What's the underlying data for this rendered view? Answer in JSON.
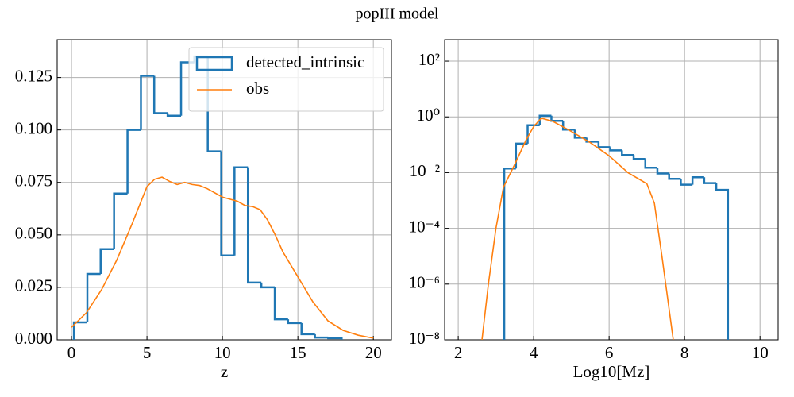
{
  "title": "popIII model",
  "chart_data": [
    {
      "type": "histogram",
      "xlabel": "z",
      "xlim": [
        -0.95,
        21.2
      ],
      "ylim": [
        0,
        0.143
      ],
      "xticks": [
        0,
        5,
        10,
        15,
        20
      ],
      "yticks": [
        {
          "value": 0,
          "label": "0.000"
        },
        {
          "value": 0.025,
          "label": "0.025"
        },
        {
          "value": 0.05,
          "label": "0.050"
        },
        {
          "value": 0.075,
          "label": "0.075"
        },
        {
          "value": 0.1,
          "label": "0.100"
        },
        {
          "value": 0.125,
          "label": "0.125"
        }
      ],
      "grid": true,
      "legend": "upper right",
      "series": [
        {
          "name": "detected_intrinsic",
          "color": "#1f77b4",
          "style": "step",
          "bins": [
            0.16,
            1.05,
            1.93,
            2.82,
            3.71,
            4.6,
            5.48,
            6.37,
            7.26,
            8.14,
            9.03,
            9.92,
            10.8,
            11.69,
            12.58,
            13.47,
            14.35,
            15.24,
            16.13,
            17.01,
            17.9
          ],
          "values": [
            0.0083,
            0.0314,
            0.0432,
            0.0697,
            0.1,
            0.1258,
            0.108,
            0.1068,
            0.1322,
            0.135,
            0.0898,
            0.0402,
            0.0822,
            0.0273,
            0.025,
            0.0098,
            0.008,
            0.0027,
            0.0011,
            0.0008
          ]
        },
        {
          "name": "obs",
          "color": "#ff7f0e",
          "style": "line",
          "x": [
            0,
            1,
            2,
            3,
            4,
            5,
            5.5,
            6,
            6.5,
            7,
            7.5,
            8,
            8.5,
            9,
            9.5,
            10,
            10.5,
            11,
            11.5,
            12,
            12.5,
            13,
            13.5,
            14,
            15,
            16,
            17,
            18,
            19,
            20
          ],
          "values": [
            0.006,
            0.013,
            0.024,
            0.038,
            0.055,
            0.073,
            0.0765,
            0.0775,
            0.0755,
            0.074,
            0.075,
            0.074,
            0.0735,
            0.072,
            0.07,
            0.068,
            0.067,
            0.066,
            0.064,
            0.0635,
            0.062,
            0.057,
            0.05,
            0.042,
            0.03,
            0.018,
            0.009,
            0.0045,
            0.0022,
            0.0008
          ]
        }
      ]
    },
    {
      "type": "histogram",
      "xlabel": "Log10[Mz]",
      "yscale": "log",
      "xlim": [
        1.64,
        10.48
      ],
      "ylim": [
        1e-08,
        590
      ],
      "xticks": [
        2,
        4,
        6,
        8,
        10
      ],
      "yticks": [
        {
          "value": 1e-08,
          "label": "10⁻⁸"
        },
        {
          "value": 1e-06,
          "label": "10⁻⁶"
        },
        {
          "value": 0.0001,
          "label": "10⁻⁴"
        },
        {
          "value": 0.01,
          "label": "10⁻²"
        },
        {
          "value": 1,
          "label": "10⁰"
        },
        {
          "value": 100,
          "label": "10²"
        }
      ],
      "grid": true,
      "series": [
        {
          "color": "#1f77b4",
          "style": "step",
          "bins": [
            3.22,
            3.53,
            3.84,
            4.16,
            4.47,
            4.78,
            5.09,
            5.4,
            5.72,
            6.03,
            6.34,
            6.65,
            6.96,
            7.28,
            7.59,
            7.9,
            8.21,
            8.52,
            8.84,
            9.15
          ],
          "values": [
            0.014,
            0.11,
            0.5,
            1.1,
            0.72,
            0.35,
            0.18,
            0.13,
            0.082,
            0.063,
            0.043,
            0.031,
            0.015,
            0.0093,
            0.006,
            0.0037,
            0.0068,
            0.0042,
            0.0024
          ]
        },
        {
          "color": "#ff7f0e",
          "style": "line",
          "x": [
            2.63,
            2.8,
            3.0,
            3.2,
            3.5,
            3.8,
            4.0,
            4.2,
            4.5,
            5.0,
            5.5,
            6.0,
            6.5,
            7.0,
            7.2,
            7.4,
            7.6,
            7.7
          ],
          "values": [
            1e-08,
            1e-06,
            0.0001,
            0.003,
            0.02,
            0.15,
            0.45,
            0.9,
            0.7,
            0.3,
            0.12,
            0.04,
            0.01,
            0.004,
            0.0008,
            1e-05,
            1e-07,
            1e-08
          ]
        }
      ]
    }
  ]
}
